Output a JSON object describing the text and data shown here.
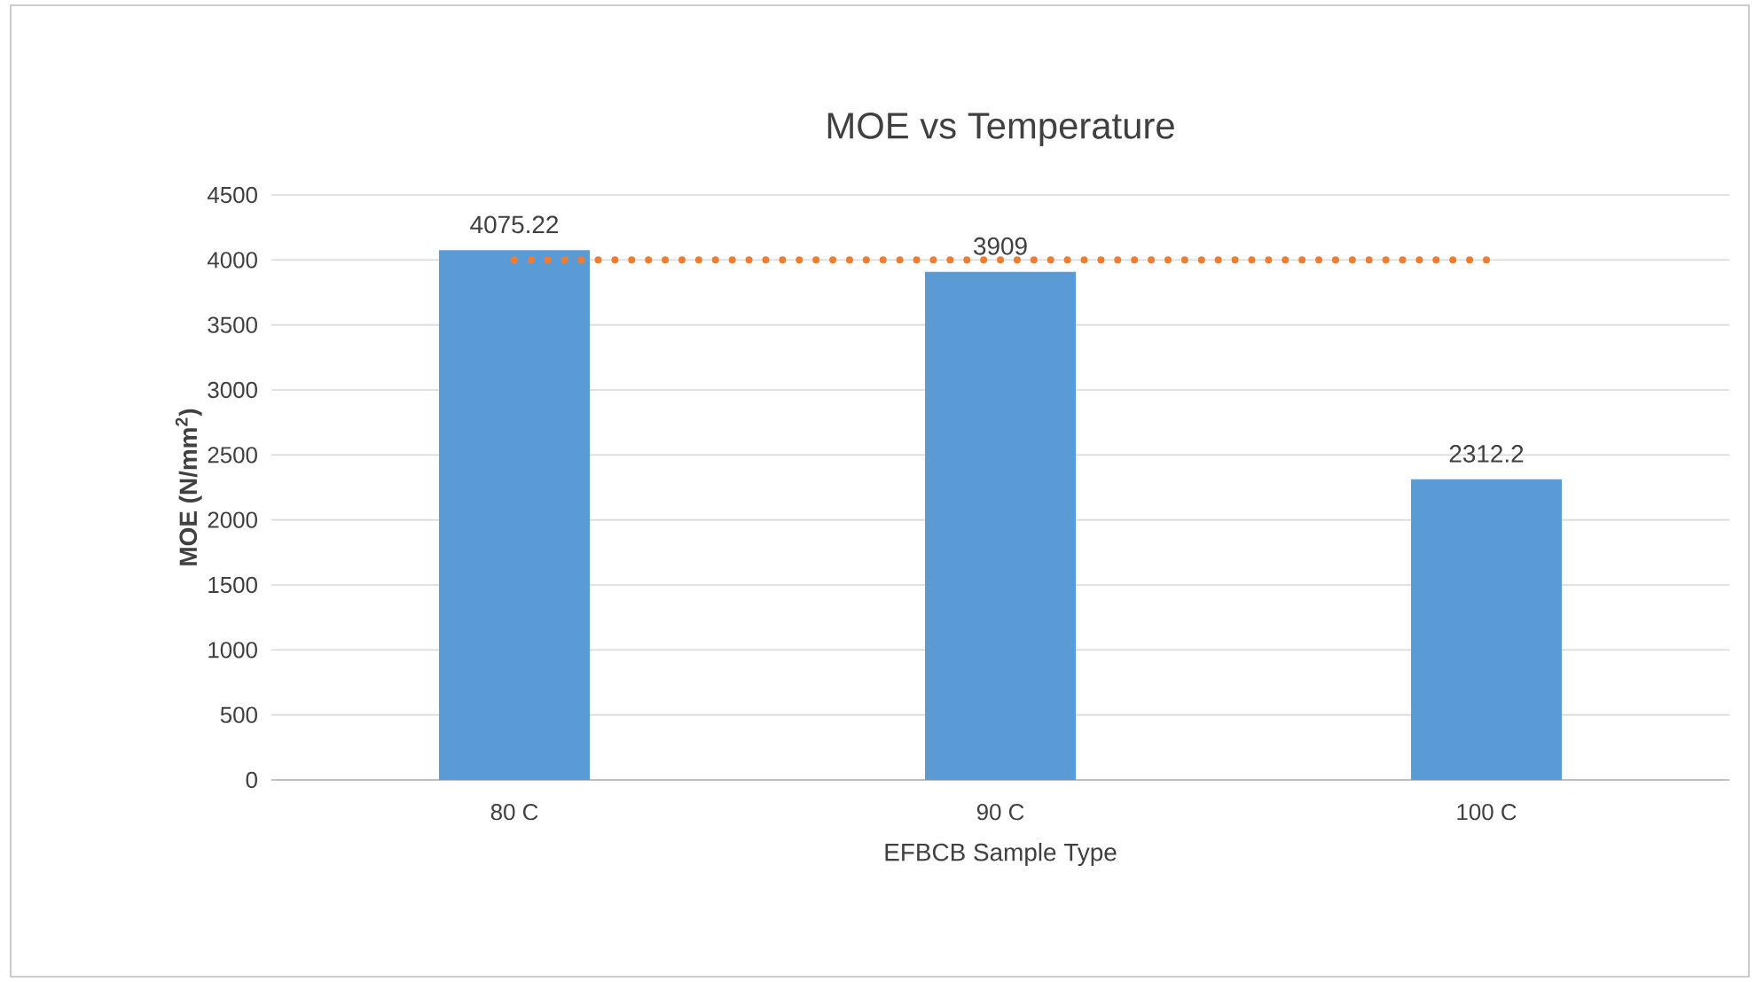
{
  "chart_data": {
    "type": "bar",
    "title": "MOE vs Temperature",
    "xlabel": "EFBCB Sample Type",
    "ylabel": "MOE (N/mm$^{2}$)",
    "categories": [
      "80 C",
      "90 C",
      "100 C"
    ],
    "series": [
      {
        "color": "#5b9bd5",
        "values": [
          4075.22,
          3909,
          2312.2
        ],
        "value_labels": [
          "4075.22",
          "3909",
          "2312.2"
        ]
      },
      {
        "type": "line",
        "color": "#ed7d31",
        "values": [
          4000,
          4000,
          4000
        ],
        "line_style": "dotted",
        "marker": "none"
      }
    ],
    "ylim": [
      0,
      4500
    ],
    "yticks": [
      0,
      500,
      1000,
      1500,
      2000,
      2500,
      3000,
      3500,
      4000,
      4500
    ],
    "grid": "y"
  }
}
